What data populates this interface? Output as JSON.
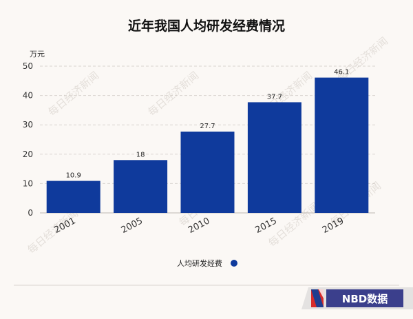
{
  "chart_data": {
    "type": "bar",
    "title": "近年我国人均研发经费情况",
    "unit": "万元",
    "categories": [
      "2001",
      "2005",
      "2010",
      "2015",
      "2019"
    ],
    "series": [
      {
        "name": "人均研发经费",
        "values": [
          10.9,
          18,
          27.7,
          37.7,
          46.1
        ],
        "color": "#0f3a9c"
      }
    ],
    "ylim": [
      0,
      50
    ],
    "yticks": [
      0,
      10,
      20,
      30,
      40,
      50
    ],
    "grid": true,
    "legend_position": "bottom-center"
  },
  "colors": {
    "bar": "#0f3a9c",
    "background": "#fbf8f5",
    "grid": "#d9d4cf",
    "logo_red": "#d62b2b"
  },
  "watermark": "每日经济新闻",
  "branding": {
    "logo_text": "NBD数据",
    "logo_icon": "nbd-logo-icon"
  }
}
